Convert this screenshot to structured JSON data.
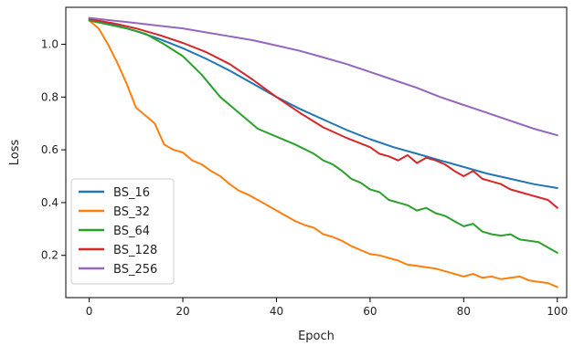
{
  "chart_data": {
    "type": "line",
    "title": "",
    "xlabel": "Epoch",
    "ylabel": "Loss",
    "xlim": [
      -5,
      102
    ],
    "ylim": [
      0.04,
      1.14
    ],
    "xticks": [
      0,
      20,
      40,
      60,
      80,
      100
    ],
    "yticks": [
      0.2,
      0.4,
      0.6,
      0.8,
      1.0
    ],
    "ytick_labels": [
      "0.2",
      "0.4",
      "0.6",
      "0.8",
      "1.0"
    ],
    "grid": false,
    "legend_position": "lower-left",
    "series": [
      {
        "name": "BS_16",
        "color": "#1f77b4",
        "x": [
          0,
          5,
          10,
          15,
          20,
          25,
          30,
          35,
          40,
          45,
          50,
          55,
          60,
          65,
          70,
          75,
          80,
          85,
          90,
          95,
          100
        ],
        "y": [
          1.095,
          1.075,
          1.05,
          1.02,
          0.985,
          0.945,
          0.9,
          0.85,
          0.8,
          0.755,
          0.715,
          0.675,
          0.64,
          0.61,
          0.585,
          0.56,
          0.535,
          0.51,
          0.49,
          0.47,
          0.455
        ]
      },
      {
        "name": "BS_32",
        "color": "#ff7f0e",
        "x": [
          0,
          2,
          4,
          6,
          8,
          10,
          12,
          14,
          16,
          18,
          20,
          22,
          24,
          26,
          28,
          30,
          32,
          34,
          36,
          38,
          40,
          42,
          44,
          46,
          48,
          50,
          52,
          54,
          56,
          58,
          60,
          62,
          64,
          66,
          68,
          70,
          72,
          74,
          76,
          78,
          80,
          82,
          84,
          86,
          88,
          90,
          92,
          94,
          96,
          98,
          100
        ],
        "y": [
          1.09,
          1.06,
          1.0,
          0.93,
          0.85,
          0.76,
          0.73,
          0.7,
          0.62,
          0.6,
          0.59,
          0.56,
          0.545,
          0.52,
          0.5,
          0.47,
          0.445,
          0.43,
          0.41,
          0.39,
          0.37,
          0.35,
          0.33,
          0.315,
          0.305,
          0.28,
          0.27,
          0.255,
          0.235,
          0.22,
          0.205,
          0.2,
          0.19,
          0.18,
          0.165,
          0.16,
          0.155,
          0.15,
          0.14,
          0.13,
          0.12,
          0.13,
          0.115,
          0.12,
          0.11,
          0.115,
          0.12,
          0.105,
          0.1,
          0.095,
          0.08
        ]
      },
      {
        "name": "BS_64",
        "color": "#2ca02c",
        "x": [
          0,
          4,
          8,
          12,
          16,
          20,
          24,
          28,
          32,
          36,
          40,
          44,
          48,
          50,
          52,
          54,
          56,
          58,
          60,
          62,
          64,
          66,
          68,
          70,
          72,
          74,
          76,
          78,
          80,
          82,
          84,
          86,
          88,
          90,
          92,
          94,
          96,
          98,
          100
        ],
        "y": [
          1.09,
          1.075,
          1.06,
          1.04,
          1.0,
          0.955,
          0.885,
          0.8,
          0.74,
          0.68,
          0.65,
          0.62,
          0.585,
          0.56,
          0.545,
          0.52,
          0.49,
          0.475,
          0.45,
          0.44,
          0.41,
          0.4,
          0.39,
          0.37,
          0.38,
          0.36,
          0.35,
          0.33,
          0.31,
          0.32,
          0.29,
          0.28,
          0.275,
          0.28,
          0.26,
          0.255,
          0.25,
          0.23,
          0.21
        ]
      },
      {
        "name": "BS_128",
        "color": "#d62728",
        "x": [
          0,
          5,
          10,
          15,
          20,
          25,
          30,
          35,
          40,
          45,
          50,
          55,
          60,
          62,
          64,
          66,
          68,
          70,
          72,
          74,
          76,
          78,
          80,
          82,
          84,
          86,
          88,
          90,
          92,
          94,
          96,
          98,
          100
        ],
        "y": [
          1.095,
          1.08,
          1.06,
          1.035,
          1.005,
          0.97,
          0.925,
          0.865,
          0.8,
          0.74,
          0.685,
          0.645,
          0.61,
          0.585,
          0.575,
          0.56,
          0.58,
          0.55,
          0.57,
          0.56,
          0.545,
          0.52,
          0.5,
          0.52,
          0.49,
          0.48,
          0.47,
          0.45,
          0.44,
          0.43,
          0.42,
          0.41,
          0.38
        ]
      },
      {
        "name": "BS_256",
        "color": "#9467bd",
        "x": [
          0,
          5,
          10,
          15,
          20,
          25,
          30,
          35,
          40,
          45,
          50,
          55,
          60,
          65,
          70,
          75,
          80,
          85,
          90,
          95,
          100
        ],
        "y": [
          1.1,
          1.09,
          1.08,
          1.07,
          1.06,
          1.045,
          1.03,
          1.015,
          0.995,
          0.975,
          0.95,
          0.925,
          0.895,
          0.865,
          0.835,
          0.8,
          0.77,
          0.74,
          0.71,
          0.68,
          0.655
        ]
      }
    ]
  }
}
